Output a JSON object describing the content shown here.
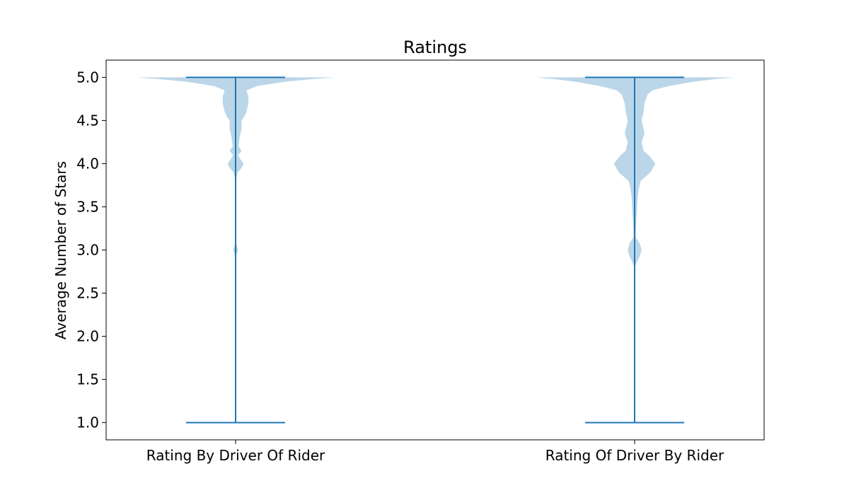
{
  "chart_data": {
    "type": "violin",
    "title": "Ratings",
    "xlabel": "",
    "ylabel": "Average Number of Stars",
    "ylim": [
      0.8,
      5.2
    ],
    "yticks": [
      {
        "value": 1.0,
        "label": "1.0"
      },
      {
        "value": 1.5,
        "label": "1.5"
      },
      {
        "value": 2.0,
        "label": "2.0"
      },
      {
        "value": 2.5,
        "label": "2.5"
      },
      {
        "value": 3.0,
        "label": "3.0"
      },
      {
        "value": 3.5,
        "label": "3.5"
      },
      {
        "value": 4.0,
        "label": "4.0"
      },
      {
        "value": 4.5,
        "label": "4.5"
      },
      {
        "value": 5.0,
        "label": "5.0"
      }
    ],
    "categories": [
      "Rating By Driver Of Rider",
      "Rating Of Driver By Rider"
    ],
    "series": [
      {
        "category": "Rating By Driver Of Rider",
        "min": 1.0,
        "max": 5.0,
        "density": [
          [
            1.0,
            0.0
          ],
          [
            2.9,
            0.0
          ],
          [
            2.95,
            0.01
          ],
          [
            3.0,
            0.025
          ],
          [
            3.05,
            0.01
          ],
          [
            3.1,
            0.0
          ],
          [
            3.8,
            0.0
          ],
          [
            3.9,
            0.02
          ],
          [
            3.95,
            0.06
          ],
          [
            4.0,
            0.08
          ],
          [
            4.05,
            0.05
          ],
          [
            4.1,
            0.025
          ],
          [
            4.15,
            0.06
          ],
          [
            4.2,
            0.03
          ],
          [
            4.3,
            0.04
          ],
          [
            4.4,
            0.06
          ],
          [
            4.5,
            0.06
          ],
          [
            4.55,
            0.09
          ],
          [
            4.6,
            0.11
          ],
          [
            4.7,
            0.13
          ],
          [
            4.78,
            0.13
          ],
          [
            4.85,
            0.11
          ],
          [
            4.9,
            0.22
          ],
          [
            4.95,
            0.5
          ],
          [
            4.98,
            0.78
          ],
          [
            5.0,
            1.0
          ]
        ]
      },
      {
        "category": "Rating Of Driver By Rider",
        "min": 1.0,
        "max": 5.0,
        "density": [
          [
            1.0,
            0.0
          ],
          [
            1.95,
            0.0
          ],
          [
            2.0,
            0.004
          ],
          [
            2.05,
            0.0
          ],
          [
            2.8,
            0.0
          ],
          [
            2.85,
            0.02
          ],
          [
            2.92,
            0.05
          ],
          [
            3.0,
            0.07
          ],
          [
            3.08,
            0.05
          ],
          [
            3.15,
            0.01
          ],
          [
            3.3,
            0.015
          ],
          [
            3.5,
            0.025
          ],
          [
            3.6,
            0.03
          ],
          [
            3.7,
            0.04
          ],
          [
            3.8,
            0.06
          ],
          [
            3.9,
            0.16
          ],
          [
            4.0,
            0.21
          ],
          [
            4.1,
            0.14
          ],
          [
            4.15,
            0.09
          ],
          [
            4.25,
            0.07
          ],
          [
            4.35,
            0.1
          ],
          [
            4.5,
            0.07
          ],
          [
            4.6,
            0.09
          ],
          [
            4.7,
            0.1
          ],
          [
            4.8,
            0.13
          ],
          [
            4.85,
            0.18
          ],
          [
            4.9,
            0.35
          ],
          [
            4.95,
            0.6
          ],
          [
            4.98,
            0.82
          ],
          [
            5.0,
            1.0
          ]
        ]
      }
    ],
    "colors": {
      "fill": "#1f77b4",
      "fill_opacity": 0.3,
      "line": "#1f77b4"
    }
  }
}
